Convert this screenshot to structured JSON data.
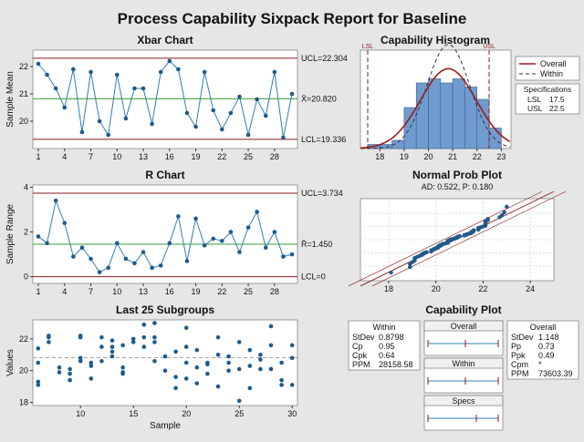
{
  "title": "Process Capability Sixpack Report for Baseline",
  "colors": {
    "point": "#1f5a8a",
    "line": "#2f7fb8",
    "ucl": "#8b1a1a",
    "center": "#3a9a3a",
    "hist": "#6f9bd0",
    "overall": "#9b1b1b",
    "within": "#333333"
  },
  "chart_data": [
    {
      "type": "line",
      "title": "Xbar Chart",
      "ylabel": "Sample Mean",
      "x": [
        1,
        2,
        3,
        4,
        5,
        6,
        7,
        8,
        9,
        10,
        11,
        12,
        13,
        14,
        15,
        16,
        17,
        18,
        19,
        20,
        21,
        22,
        23,
        24,
        25,
        26,
        27,
        28,
        29,
        30
      ],
      "values": [
        22.1,
        21.7,
        21.2,
        20.5,
        21.9,
        19.6,
        21.8,
        20.0,
        19.5,
        21.7,
        20.1,
        21.2,
        21.2,
        19.9,
        21.8,
        22.2,
        21.9,
        20.3,
        19.8,
        21.8,
        20.4,
        19.7,
        20.3,
        20.9,
        19.5,
        20.8,
        20.2,
        21.8,
        19.4,
        21.0
      ],
      "ucl": 22.304,
      "center": 20.82,
      "lcl": 19.336,
      "ucl_label": "UCL=22.304",
      "center_label": "X̄=20.820",
      "lcl_label": "LCL=19.336",
      "xticks": [
        "1",
        "4",
        "7",
        "10",
        "13",
        "16",
        "19",
        "22",
        "25",
        "28"
      ],
      "yticks": [
        "20",
        "21",
        "22"
      ],
      "ylim": [
        19.0,
        22.6
      ]
    },
    {
      "type": "line",
      "title": "R Chart",
      "ylabel": "Sample Range",
      "x": [
        1,
        2,
        3,
        4,
        5,
        6,
        7,
        8,
        9,
        10,
        11,
        12,
        13,
        14,
        15,
        16,
        17,
        18,
        19,
        20,
        21,
        22,
        23,
        24,
        25,
        26,
        27,
        28,
        29,
        30
      ],
      "values": [
        1.8,
        1.5,
        3.4,
        2.4,
        0.9,
        1.3,
        0.8,
        0.2,
        0.4,
        1.5,
        0.8,
        0.6,
        1.1,
        0.4,
        0.5,
        1.5,
        2.7,
        0.7,
        2.6,
        1.4,
        1.7,
        1.6,
        2.0,
        1.1,
        2.2,
        2.9,
        1.3,
        2.0,
        0.9,
        1.0
      ],
      "ucl": 3.734,
      "center": 1.45,
      "lcl": 0,
      "ucl_label": "UCL=3.734",
      "center_label": "R̄=1.450",
      "lcl_label": "LCL=0",
      "xticks": [
        "1",
        "4",
        "7",
        "10",
        "13",
        "16",
        "19",
        "22",
        "25",
        "28"
      ],
      "yticks": [
        "0",
        "2",
        "4"
      ],
      "ylim": [
        -0.3,
        4.1
      ]
    },
    {
      "type": "scatter",
      "title": "Last 25 Subgroups",
      "xlabel": "Sample",
      "ylabel": "Values",
      "points": [
        [
          6,
          19.1
        ],
        [
          6,
          19.3
        ],
        [
          6,
          20.5
        ],
        [
          6,
          21.4
        ],
        [
          7,
          21.8
        ],
        [
          7,
          22.1
        ],
        [
          7,
          22.2
        ],
        [
          8,
          20.2
        ],
        [
          8,
          19.9
        ],
        [
          9,
          19.8
        ],
        [
          9,
          19.4
        ],
        [
          9,
          20.1
        ],
        [
          10,
          22.2
        ],
        [
          10,
          20.8
        ],
        [
          10,
          22.1
        ],
        [
          10,
          20.6
        ],
        [
          11,
          20.5
        ],
        [
          11,
          20.3
        ],
        [
          11,
          19.5
        ],
        [
          12,
          21.5
        ],
        [
          12,
          20.6
        ],
        [
          12,
          22.1
        ],
        [
          13,
          21.2
        ],
        [
          13,
          20.9
        ],
        [
          13,
          21.5
        ],
        [
          13,
          21.9
        ],
        [
          14,
          20.2
        ],
        [
          14,
          19.9
        ],
        [
          14,
          19.8
        ],
        [
          14,
          21.6
        ],
        [
          15,
          22.0
        ],
        [
          15,
          21.8
        ],
        [
          16,
          22.9
        ],
        [
          16,
          21.5
        ],
        [
          16,
          22.1
        ],
        [
          17,
          23.0
        ],
        [
          17,
          21.8
        ],
        [
          17,
          20.6
        ],
        [
          17,
          22.1
        ],
        [
          18,
          20.9
        ],
        [
          18,
          20.0
        ],
        [
          19,
          19.6
        ],
        [
          19,
          18.9
        ],
        [
          19,
          21.2
        ],
        [
          20,
          22.7
        ],
        [
          20,
          21.5
        ],
        [
          20,
          20.5
        ],
        [
          20,
          19.5
        ],
        [
          21,
          21.3
        ],
        [
          21,
          20.2
        ],
        [
          21,
          19.2
        ],
        [
          22,
          20.4
        ],
        [
          22,
          19.8
        ],
        [
          22,
          20.5
        ],
        [
          23,
          22.1
        ],
        [
          23,
          21.0
        ],
        [
          23,
          19.0
        ],
        [
          24,
          20.5
        ],
        [
          24,
          20.0
        ],
        [
          24,
          20.9
        ],
        [
          25,
          21.8
        ],
        [
          25,
          20.1
        ],
        [
          25,
          18.1
        ],
        [
          26,
          21.3
        ],
        [
          26,
          20.3
        ],
        [
          26,
          18.9
        ],
        [
          27,
          20.7
        ],
        [
          27,
          20.1
        ],
        [
          27,
          21.0
        ],
        [
          28,
          22.8
        ],
        [
          28,
          21.6
        ],
        [
          28,
          20.1
        ],
        [
          29,
          19.1
        ],
        [
          29,
          20.5
        ],
        [
          29,
          19.4
        ],
        [
          30,
          21.6
        ],
        [
          30,
          20.8
        ],
        [
          30,
          19.1
        ]
      ],
      "center": 20.82,
      "xticks": [
        "10",
        "15",
        "20",
        "25",
        "30"
      ],
      "yticks": [
        "18",
        "20",
        "22"
      ],
      "xlim": [
        5.5,
        30.5
      ],
      "ylim": [
        17.8,
        23.2
      ]
    },
    {
      "type": "bar",
      "title": "Capability Histogram",
      "bin_edges": [
        17.5,
        18.0,
        18.5,
        19.0,
        19.5,
        20.0,
        20.5,
        21.0,
        21.5,
        22.0,
        22.5,
        23.0
      ],
      "values": [
        1,
        1,
        2,
        10,
        16,
        17,
        16,
        17,
        15,
        12,
        5
      ],
      "lsl": 17.5,
      "usl": 22.5,
      "lsl_label": "LSL",
      "usl_label": "USL",
      "mean": 20.82,
      "sd_overall": 1.148,
      "sd_within": 0.8798,
      "xticks": [
        "18",
        "19",
        "20",
        "21",
        "22",
        "23"
      ],
      "xlim": [
        17.2,
        23.4
      ],
      "legend": {
        "overall": "Overall",
        "within": "Within"
      },
      "specs": {
        "title": "Specifications",
        "lsl_name": "LSL",
        "lsl_value": "17.5",
        "usl_name": "USL",
        "usl_value": "22.5"
      }
    },
    {
      "type": "scatter",
      "title": "Normal Prob Plot",
      "subtitle": "AD: 0.522, P: 0.180",
      "xticks": [
        "18",
        "20",
        "22",
        "24"
      ],
      "xlim": [
        16.8,
        25.0
      ],
      "mean": 20.82,
      "sd": 1.148
    }
  ],
  "capability_plot": {
    "title": "Capability Plot",
    "within": {
      "title": "Within",
      "rows": [
        [
          "StDev",
          "0.8798"
        ],
        [
          "Cp",
          "0.95"
        ],
        [
          "Cpk",
          "0.64"
        ],
        [
          "PPM",
          "28158.58"
        ]
      ]
    },
    "overall": {
      "title": "Overall",
      "rows": [
        [
          "StDev",
          "1.148"
        ],
        [
          "Pp",
          "0.73"
        ],
        [
          "Ppk",
          "0.49"
        ],
        [
          "Cpm",
          "*"
        ],
        [
          "PPM",
          "73603.39"
        ]
      ]
    },
    "bars": {
      "overall": "Overall",
      "within": "Within",
      "specs": "Specs"
    }
  }
}
